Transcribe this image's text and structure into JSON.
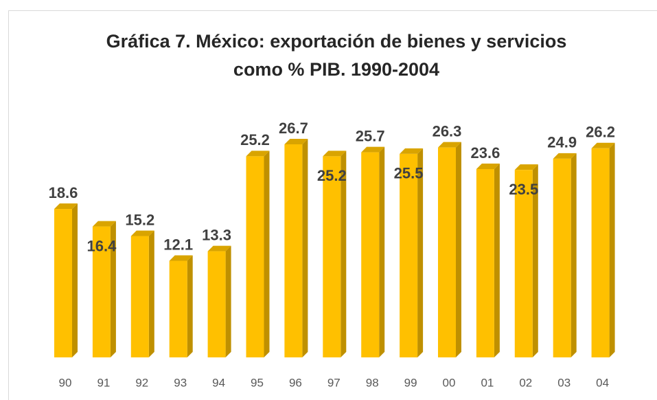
{
  "chart_data": {
    "type": "bar",
    "title": "Gráfica 7. México: exportación de bienes y servicios como % PIB. 1990-2004",
    "title_lines": [
      "Gráfica 7. México: exportación de bienes y servicios",
      "como % PIB. 1990-2004"
    ],
    "categories": [
      "90",
      "91",
      "92",
      "93",
      "94",
      "95",
      "96",
      "97",
      "98",
      "99",
      "00",
      "01",
      "02",
      "03",
      "04"
    ],
    "values": [
      18.6,
      16.4,
      15.2,
      12.1,
      13.3,
      25.2,
      26.7,
      25.2,
      25.7,
      25.5,
      26.3,
      23.6,
      23.5,
      24.9,
      26.2
    ],
    "color": "#ffc000"
  }
}
